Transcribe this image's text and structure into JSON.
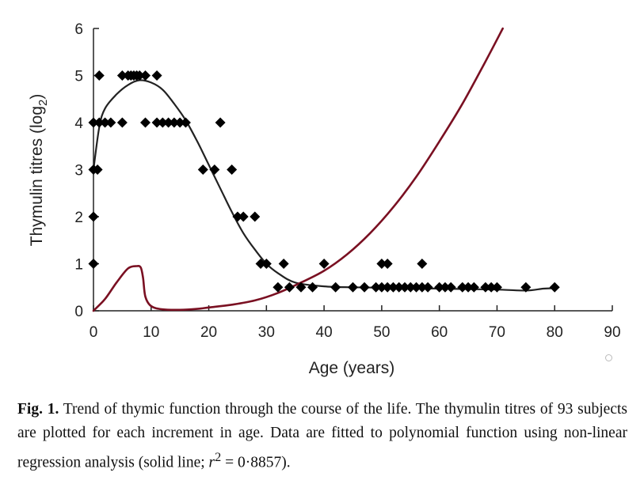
{
  "chart_data": {
    "type": "scatter",
    "xlabel": "Age (years)",
    "ylabel": "Thymulin titres (log2)",
    "xlim": [
      0,
      90
    ],
    "ylim": [
      0,
      6
    ],
    "x_ticks": [
      "0",
      "10",
      "20",
      "30",
      "40",
      "50",
      "60",
      "70",
      "80",
      "90"
    ],
    "y_ticks": [
      "0",
      "1",
      "2",
      "3",
      "4",
      "5",
      "6"
    ],
    "series": [
      {
        "kind": "scatter",
        "color": "#000000",
        "marker": "diamond",
        "points": [
          [
            0,
            1
          ],
          [
            0,
            2
          ],
          [
            0,
            3
          ],
          [
            0.7,
            3
          ],
          [
            0,
            4
          ],
          [
            1,
            4
          ],
          [
            2,
            4
          ],
          [
            3,
            4
          ],
          [
            5,
            4
          ],
          [
            1,
            5
          ],
          [
            5,
            5
          ],
          [
            6,
            5
          ],
          [
            6.5,
            5
          ],
          [
            7,
            5
          ],
          [
            7.5,
            5
          ],
          [
            8,
            5
          ],
          [
            9,
            5
          ],
          [
            11,
            5
          ],
          [
            9,
            4
          ],
          [
            11,
            4
          ],
          [
            12,
            4
          ],
          [
            13,
            4
          ],
          [
            14,
            4
          ],
          [
            15,
            4
          ],
          [
            16,
            4
          ],
          [
            22,
            4
          ],
          [
            19,
            3
          ],
          [
            21,
            3
          ],
          [
            24,
            3
          ],
          [
            25,
            2
          ],
          [
            26,
            2
          ],
          [
            28,
            2
          ],
          [
            29,
            1
          ],
          [
            30,
            1
          ],
          [
            33,
            1
          ],
          [
            40,
            1
          ],
          [
            50,
            1
          ],
          [
            51,
            1
          ],
          [
            57,
            1
          ],
          [
            32,
            0.5
          ],
          [
            34,
            0.5
          ],
          [
            36,
            0.5
          ],
          [
            38,
            0.5
          ],
          [
            42,
            0.5
          ],
          [
            45,
            0.5
          ],
          [
            47,
            0.5
          ],
          [
            49,
            0.5
          ],
          [
            50,
            0.5
          ],
          [
            51,
            0.5
          ],
          [
            52,
            0.5
          ],
          [
            53,
            0.5
          ],
          [
            54,
            0.5
          ],
          [
            55,
            0.5
          ],
          [
            56,
            0.5
          ],
          [
            57,
            0.5
          ],
          [
            58,
            0.5
          ],
          [
            60,
            0.5
          ],
          [
            61,
            0.5
          ],
          [
            62,
            0.5
          ],
          [
            64,
            0.5
          ],
          [
            65,
            0.5
          ],
          [
            66,
            0.5
          ],
          [
            68,
            0.5
          ],
          [
            69,
            0.5
          ],
          [
            70,
            0.5
          ],
          [
            75,
            0.5
          ],
          [
            80,
            0.5
          ]
        ]
      },
      {
        "kind": "line",
        "color": "#222222",
        "points": [
          [
            0,
            3
          ],
          [
            1,
            3.9
          ],
          [
            2,
            4.3
          ],
          [
            4,
            4.6
          ],
          [
            6,
            4.8
          ],
          [
            8,
            4.9
          ],
          [
            10,
            4.85
          ],
          [
            12,
            4.7
          ],
          [
            14,
            4.4
          ],
          [
            16,
            4.05
          ],
          [
            18,
            3.6
          ],
          [
            20,
            3.1
          ],
          [
            22,
            2.6
          ],
          [
            24,
            2.1
          ],
          [
            26,
            1.65
          ],
          [
            28,
            1.3
          ],
          [
            30,
            1.0
          ],
          [
            32,
            0.8
          ],
          [
            35,
            0.6
          ],
          [
            40,
            0.52
          ],
          [
            45,
            0.5
          ],
          [
            50,
            0.49
          ],
          [
            60,
            0.47
          ],
          [
            70,
            0.45
          ],
          [
            75,
            0.43
          ],
          [
            78,
            0.47
          ],
          [
            80,
            0.48
          ]
        ]
      },
      {
        "kind": "line",
        "color": "#7a1022",
        "points": [
          [
            0,
            0
          ],
          [
            2,
            0.25
          ],
          [
            4,
            0.6
          ],
          [
            6,
            0.9
          ],
          [
            7.5,
            0.95
          ],
          [
            8.2,
            0.92
          ],
          [
            8.6,
            0.7
          ],
          [
            9,
            0.3
          ],
          [
            10,
            0.1
          ],
          [
            12,
            0.03
          ],
          [
            15,
            0.02
          ],
          [
            18,
            0.04
          ],
          [
            20,
            0.07
          ],
          [
            24,
            0.13
          ],
          [
            28,
            0.22
          ],
          [
            32,
            0.38
          ],
          [
            36,
            0.6
          ],
          [
            40,
            0.85
          ],
          [
            44,
            1.2
          ],
          [
            48,
            1.65
          ],
          [
            52,
            2.2
          ],
          [
            56,
            2.85
          ],
          [
            60,
            3.6
          ],
          [
            64,
            4.4
          ],
          [
            68,
            5.3
          ],
          [
            71,
            6
          ]
        ]
      }
    ],
    "caption": {
      "bold": "Fig. 1.",
      "before_r2": " Trend of thymic function through the course of the life. The thymulin titres of 93 subjects are plotted for each increment in age. Data are fitted to polynomial function using non-linear regression analysis (solid line; ",
      "r2_symbol": "r",
      "r2_exp": "2",
      "r2_value": " = 0·8857)."
    }
  }
}
